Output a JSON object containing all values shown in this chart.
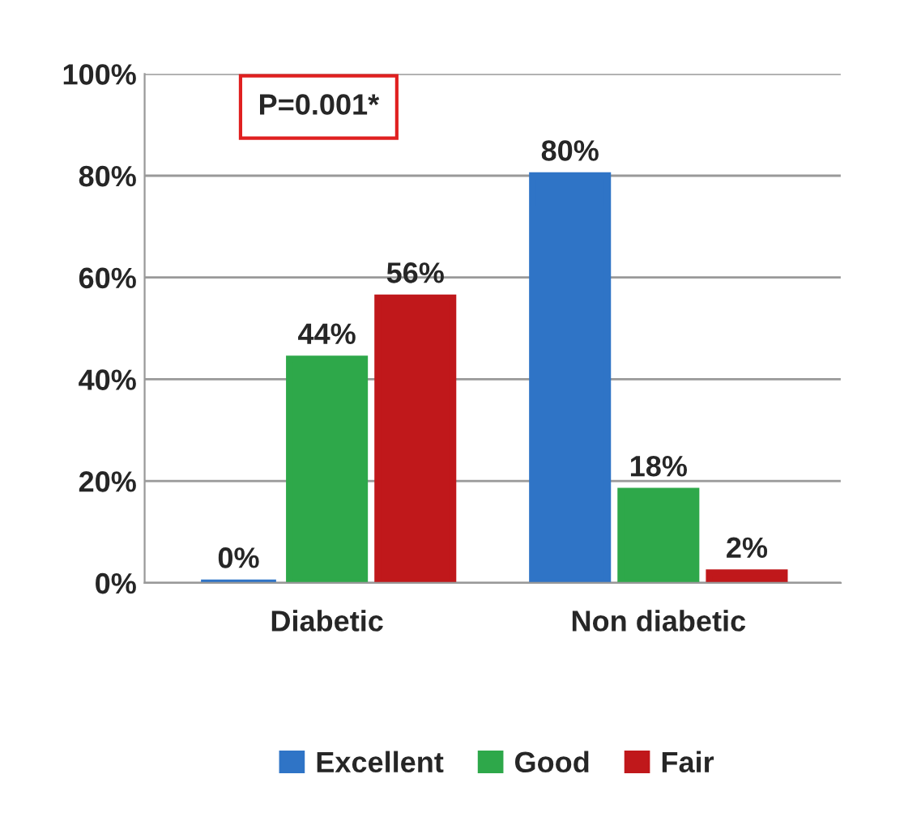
{
  "chart_data": {
    "type": "bar",
    "categories": [
      "Diabetic",
      "Non diabetic"
    ],
    "series": [
      {
        "name": "Excellent",
        "color": "#2f74c6",
        "values": [
          0,
          80
        ],
        "value_labels": [
          "0%",
          "80%"
        ]
      },
      {
        "name": "Good",
        "color": "#2ea84a",
        "values": [
          44,
          18
        ],
        "value_labels": [
          "44%",
          "18%"
        ]
      },
      {
        "name": "Fair",
        "color": "#c0181b",
        "values": [
          56,
          2
        ],
        "value_labels": [
          "56%",
          "2%"
        ]
      }
    ],
    "ylim": [
      0,
      100
    ],
    "yticks": [
      {
        "value": 0,
        "label": "0%"
      },
      {
        "value": 20,
        "label": "20%"
      },
      {
        "value": 40,
        "label": "40%"
      },
      {
        "value": 60,
        "label": "60%"
      },
      {
        "value": 80,
        "label": "80%"
      },
      {
        "value": 100,
        "label": "100%"
      }
    ],
    "grid": "y",
    "legend": "bottom",
    "annotations": [
      "P=0.001*"
    ]
  }
}
